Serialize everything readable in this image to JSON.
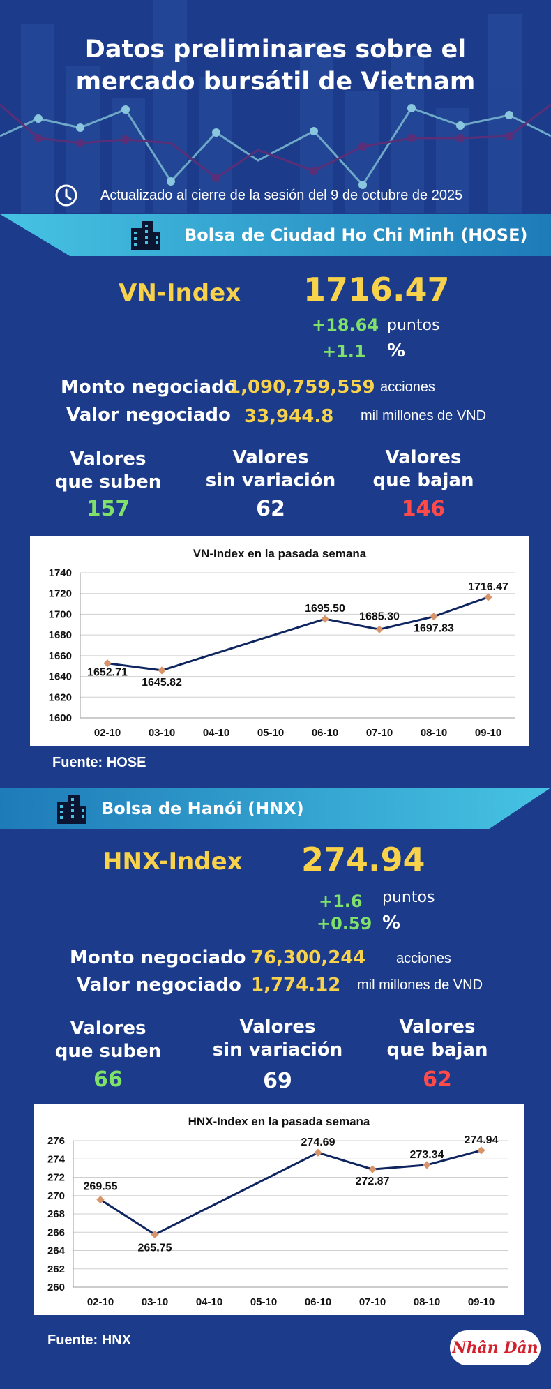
{
  "title_line1": "Datos preliminares sobre el",
  "title_line2": "mercado bursátil de Vietnam",
  "updated": "Actualizado al cierre de la sesión del 9 de octubre de 2025",
  "hose": {
    "exchange": "Bolsa de Ciudad Ho Chi Minh (HOSE)",
    "index_name": "VN-Index",
    "index_value": "1716.47",
    "change_points": "+18.64",
    "points_label": "puntos",
    "change_pct": "+1.1",
    "pct_label": "%",
    "volume_label": "Monto negociado",
    "volume_value": "1,090,759,559",
    "volume_unit": "acciones",
    "value_label": "Valor negociado",
    "value_value": "33,944.8",
    "value_unit": "mil millones de VND",
    "up_label_1": "Valores",
    "up_label_2": "que suben",
    "up_count": "157",
    "flat_label_1": "Valores",
    "flat_label_2": "sin variación",
    "flat_count": "62",
    "down_label_1": "Valores",
    "down_label_2": "que bajan",
    "down_count": "146",
    "source": "Fuente: HOSE"
  },
  "hnx": {
    "exchange": "Bolsa de Hanói (HNX)",
    "index_name": "HNX-Index",
    "index_value": "274.94",
    "change_points": "+1.6",
    "points_label": "puntos",
    "change_pct": "+0.59",
    "pct_label": "%",
    "volume_label": "Monto negociado",
    "volume_value": "76,300,244",
    "volume_unit": "acciones",
    "value_label": "Valor negociado",
    "value_value": "1,774.12",
    "value_unit": "mil millones de VND",
    "up_label_1": "Valores",
    "up_label_2": "que suben",
    "up_count": "66",
    "flat_label_1": "Valores",
    "flat_label_2": "sin variación",
    "flat_count": "69",
    "down_label_1": "Valores",
    "down_label_2": "que bajan",
    "down_count": "62",
    "source": "Fuente:  HNX"
  },
  "logo": "Nhân Dân",
  "colors": {
    "background": "#1c3c8b",
    "accent_yellow": "#f7d24a",
    "up_green": "#7fe06a",
    "down_red": "#ff4a4a",
    "line": "#0f2560",
    "marker": "#d9956a"
  },
  "chart_data": [
    {
      "type": "line",
      "title": "VN-Index en la pasada semana",
      "categories": [
        "02-10",
        "03-10",
        "04-10",
        "05-10",
        "06-10",
        "07-10",
        "08-10",
        "09-10"
      ],
      "values": [
        1652.71,
        1645.82,
        null,
        null,
        1695.5,
        1685.3,
        1697.83,
        1716.47
      ],
      "labels": [
        "1652.71",
        "1645.82",
        "",
        "",
        "1695.50",
        "1685.30",
        "1697.83",
        "1716.47"
      ],
      "ylim": [
        1600,
        1740
      ],
      "yticks": [
        1600,
        1620,
        1640,
        1660,
        1680,
        1700,
        1720,
        1740
      ],
      "grid": true
    },
    {
      "type": "line",
      "title": "HNX-Index en la pasada semana",
      "categories": [
        "02-10",
        "03-10",
        "04-10",
        "05-10",
        "06-10",
        "07-10",
        "08-10",
        "09-10"
      ],
      "values": [
        269.55,
        265.75,
        null,
        null,
        274.69,
        272.87,
        273.34,
        274.94
      ],
      "labels": [
        "269.55",
        "265.75",
        "",
        "",
        "274.69",
        "272.87",
        "273.34",
        "274.94"
      ],
      "ylim": [
        260,
        276
      ],
      "yticks": [
        260,
        262,
        264,
        266,
        268,
        270,
        272,
        274,
        276
      ],
      "grid": true
    }
  ]
}
